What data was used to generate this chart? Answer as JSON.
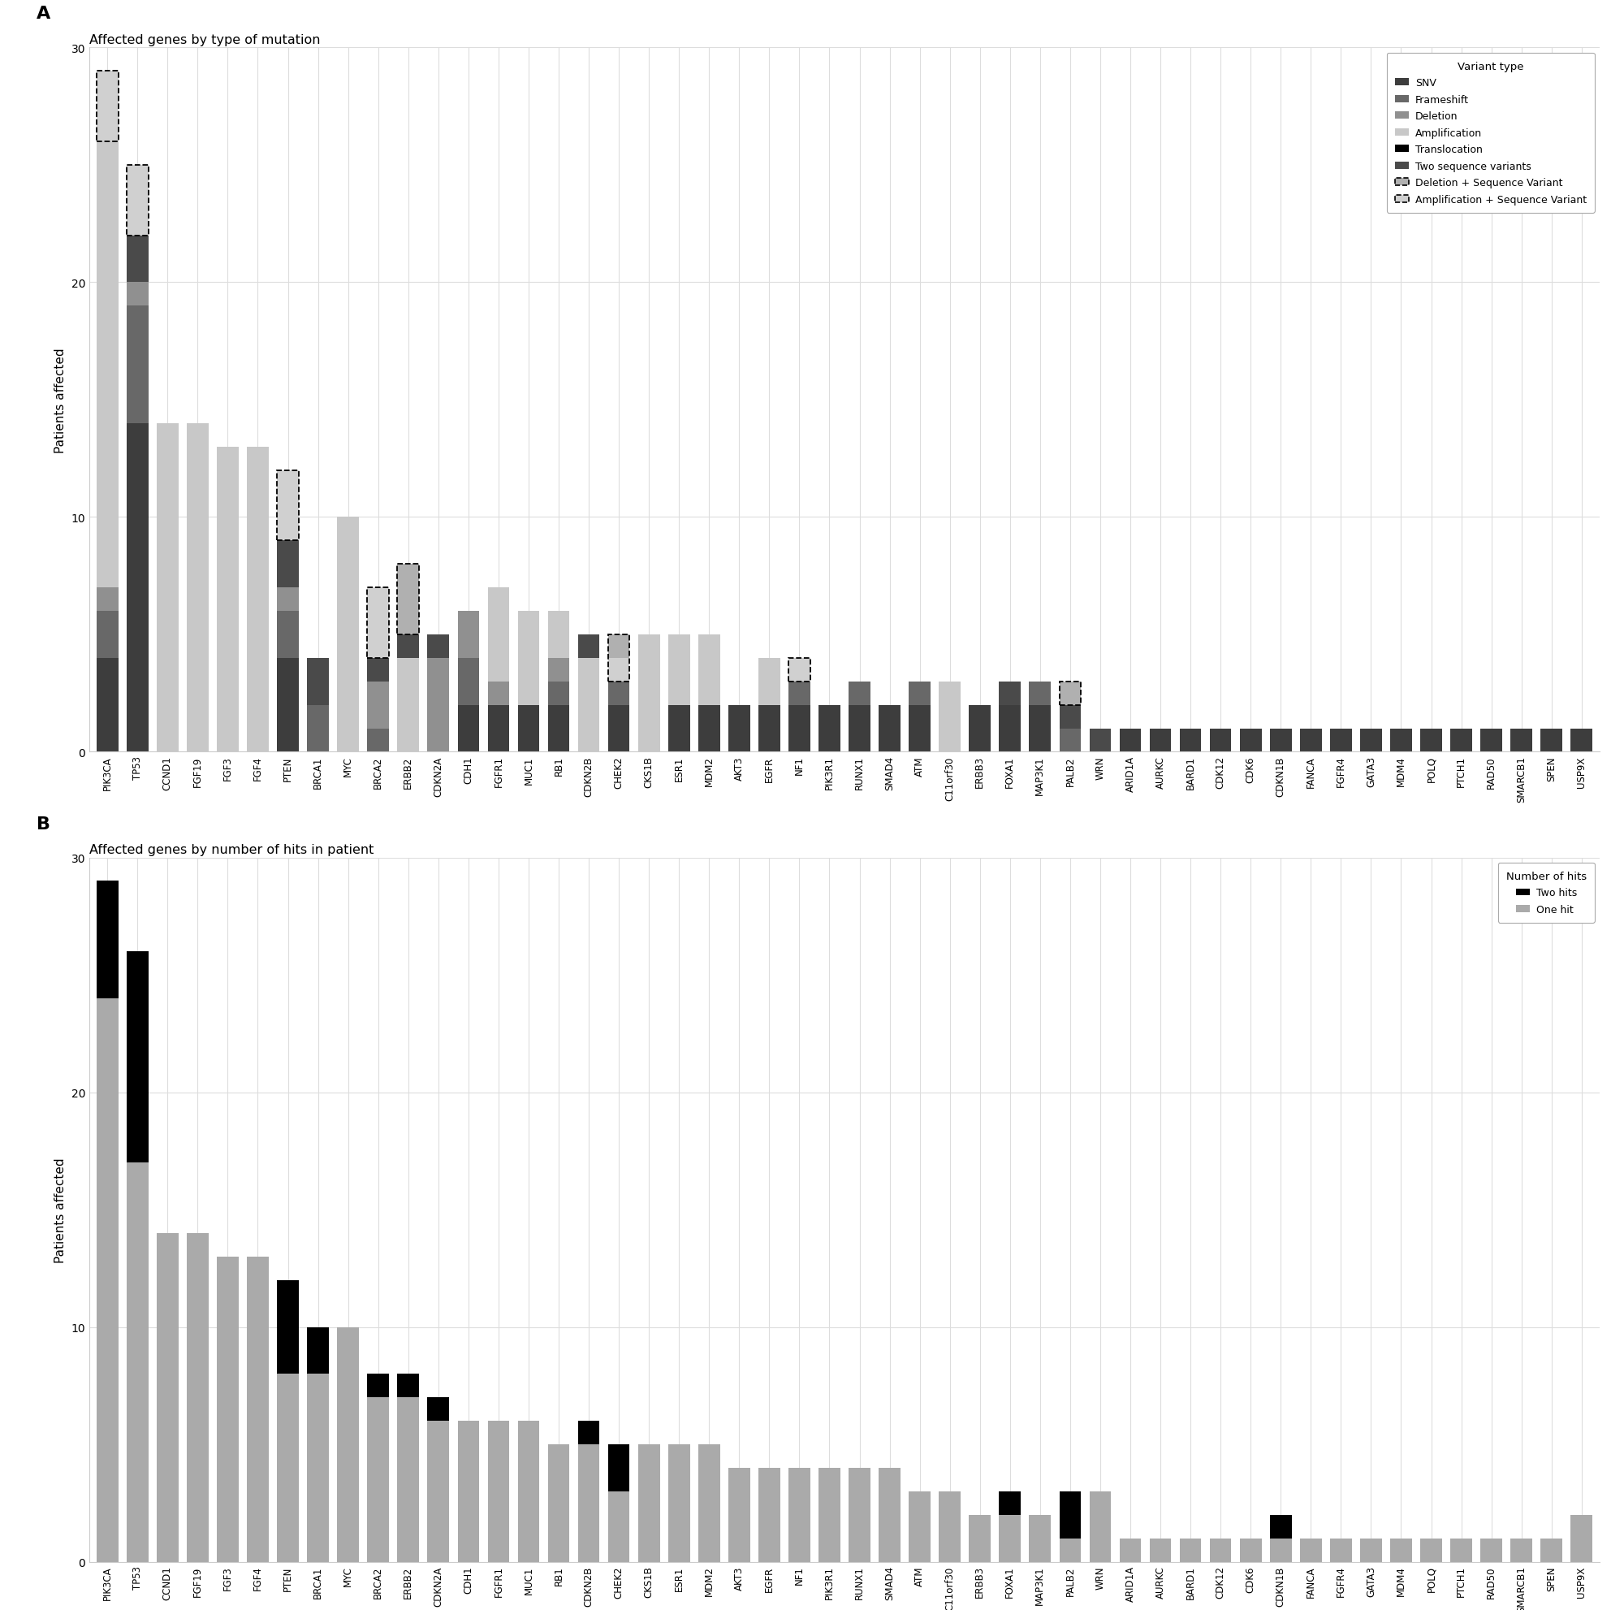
{
  "genes": [
    "PIK3CA",
    "TP53",
    "CCND1",
    "FGF19",
    "FGF3",
    "FGF4",
    "PTEN",
    "BRCA1",
    "MYC",
    "BRCA2",
    "ERBB2",
    "CDKN2A",
    "CDH1",
    "FGFR1",
    "MUC1",
    "RB1",
    "CDKN2B",
    "CHEK2",
    "CKS1B",
    "ESR1",
    "MDM2",
    "AKT3",
    "EGFR",
    "NF1",
    "PIK3R1",
    "RUNX1",
    "SMAD4",
    "ATM",
    "C11orf30",
    "ERBB3",
    "FOXA1",
    "MAP3K1",
    "PALB2",
    "WRN",
    "ARID1A",
    "AURKC",
    "BARD1",
    "CDK12",
    "CDK6",
    "CDKN1B",
    "FANCA",
    "FGFR4",
    "GATA3",
    "MDM4",
    "POLQ",
    "PTCH1",
    "RAD50",
    "SMARCB1",
    "SPEN",
    "USP9X"
  ],
  "panel_a": {
    "SNV": [
      4,
      14,
      0,
      0,
      0,
      0,
      4,
      0,
      0,
      0,
      0,
      0,
      2,
      2,
      2,
      2,
      0,
      2,
      0,
      2,
      2,
      2,
      2,
      2,
      2,
      2,
      2,
      2,
      0,
      2,
      2,
      2,
      0,
      0,
      1,
      1,
      1,
      1,
      1,
      1,
      1,
      1,
      1,
      1,
      1,
      1,
      1,
      1,
      1,
      1
    ],
    "Frameshift": [
      2,
      5,
      0,
      0,
      0,
      0,
      2,
      2,
      0,
      1,
      0,
      0,
      2,
      0,
      0,
      1,
      0,
      1,
      0,
      0,
      0,
      0,
      0,
      1,
      0,
      1,
      0,
      1,
      0,
      0,
      0,
      1,
      1,
      0,
      0,
      0,
      0,
      0,
      0,
      0,
      0,
      0,
      0,
      0,
      0,
      0,
      0,
      0,
      0,
      0
    ],
    "Deletion": [
      1,
      1,
      0,
      0,
      0,
      0,
      1,
      0,
      0,
      2,
      0,
      4,
      2,
      1,
      0,
      1,
      0,
      0,
      0,
      0,
      0,
      0,
      0,
      0,
      0,
      0,
      0,
      0,
      0,
      0,
      0,
      0,
      0,
      0,
      0,
      0,
      0,
      0,
      0,
      0,
      0,
      0,
      0,
      0,
      0,
      0,
      0,
      0,
      0,
      0
    ],
    "Amplification": [
      19,
      0,
      14,
      14,
      13,
      13,
      0,
      0,
      10,
      0,
      4,
      0,
      0,
      4,
      4,
      2,
      4,
      0,
      5,
      3,
      3,
      0,
      2,
      0,
      0,
      0,
      0,
      0,
      3,
      0,
      0,
      0,
      0,
      0,
      0,
      0,
      0,
      0,
      0,
      0,
      0,
      0,
      0,
      0,
      0,
      0,
      0,
      0,
      0,
      0
    ],
    "Translocation": [
      0,
      0,
      0,
      0,
      0,
      0,
      0,
      0,
      0,
      0,
      0,
      0,
      0,
      0,
      0,
      0,
      0,
      0,
      0,
      0,
      0,
      0,
      0,
      0,
      0,
      0,
      0,
      0,
      0,
      0,
      0,
      0,
      0,
      0,
      0,
      0,
      0,
      0,
      0,
      0,
      0,
      0,
      0,
      0,
      0,
      0,
      0,
      0,
      0,
      0
    ],
    "TwoSeq": [
      0,
      2,
      0,
      0,
      0,
      0,
      2,
      2,
      0,
      1,
      1,
      1,
      0,
      0,
      0,
      0,
      1,
      0,
      0,
      0,
      0,
      0,
      0,
      0,
      0,
      0,
      0,
      0,
      0,
      0,
      1,
      0,
      1,
      1,
      0,
      0,
      0,
      0,
      0,
      0,
      0,
      0,
      0,
      0,
      0,
      0,
      0,
      0,
      0,
      0
    ],
    "AmpSeq": [
      3,
      3,
      0,
      0,
      0,
      0,
      3,
      0,
      0,
      3,
      0,
      0,
      0,
      0,
      0,
      0,
      0,
      1,
      0,
      0,
      0,
      0,
      0,
      1,
      0,
      0,
      0,
      0,
      0,
      0,
      0,
      0,
      0,
      0,
      0,
      0,
      0,
      0,
      0,
      0,
      0,
      0,
      0,
      0,
      0,
      0,
      0,
      0,
      0,
      0
    ],
    "DelSeq": [
      0,
      0,
      0,
      0,
      0,
      0,
      0,
      0,
      0,
      0,
      3,
      0,
      0,
      0,
      0,
      0,
      0,
      1,
      0,
      0,
      0,
      0,
      0,
      0,
      0,
      0,
      0,
      0,
      0,
      0,
      0,
      0,
      1,
      0,
      0,
      0,
      0,
      0,
      0,
      0,
      0,
      0,
      0,
      0,
      0,
      0,
      0,
      0,
      0,
      0
    ]
  },
  "panel_b": {
    "one_hit": [
      24,
      17,
      14,
      14,
      13,
      13,
      8,
      8,
      10,
      7,
      7,
      6,
      6,
      6,
      6,
      5,
      5,
      3,
      5,
      5,
      5,
      4,
      4,
      4,
      4,
      4,
      4,
      3,
      3,
      2,
      2,
      2,
      1,
      3,
      1,
      1,
      1,
      1,
      1,
      1,
      1,
      1,
      1,
      1,
      1,
      1,
      1,
      1,
      1,
      2
    ],
    "two_hits": [
      5,
      9,
      0,
      0,
      0,
      0,
      4,
      2,
      0,
      1,
      1,
      1,
      0,
      0,
      0,
      0,
      1,
      2,
      0,
      0,
      0,
      0,
      0,
      0,
      0,
      0,
      0,
      0,
      0,
      0,
      1,
      0,
      2,
      0,
      0,
      0,
      0,
      0,
      0,
      1,
      0,
      0,
      0,
      0,
      0,
      0,
      0,
      0,
      0,
      0
    ]
  },
  "colors": {
    "SNV": "#3d3d3d",
    "Frameshift": "#686868",
    "Deletion": "#909090",
    "Amplification": "#c8c8c8",
    "Translocation": "#000000",
    "TwoSeq": "#4a4a4a",
    "AmpSeq": "#d0d0d0",
    "DelSeq": "#b0b0b0",
    "two_hits": "#000000",
    "one_hit": "#aaaaaa"
  },
  "ylim": 30,
  "yticks": [
    0,
    10,
    20,
    30
  ],
  "title_A": "Affected genes by type of mutation",
  "title_B": "Affected genes by number of hits in patient",
  "ylabel": "Patients affected",
  "legend_title_A": "Variant type",
  "legend_entries_A": [
    "SNV",
    "Frameshift",
    "Deletion",
    "Amplification",
    "Translocation",
    "Two sequence variants",
    "Deletion + Sequence Variant",
    "Amplification + Sequence Variant"
  ],
  "legend_title_B": "Number of hits",
  "legend_entries_B": [
    "Two hits",
    "One hit"
  ],
  "panel_labels": [
    "A",
    "B"
  ]
}
